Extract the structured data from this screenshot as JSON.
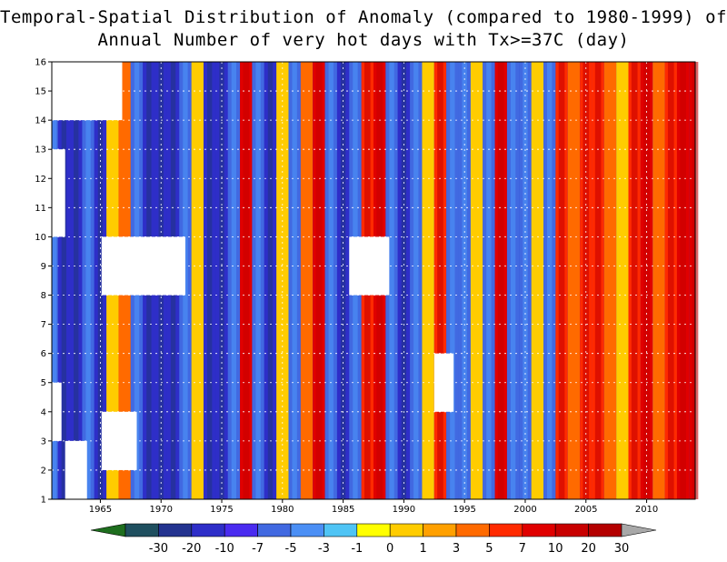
{
  "chart_data": {
    "type": "heatmap",
    "title": "Temporal-Spatial Distribution of Anomaly (compared to 1980-1999) of",
    "subtitle": "Annual Number of very hot days with Tx>=37C (day)",
    "x_ticks": [
      1965,
      1970,
      1975,
      1980,
      1985,
      1990,
      1995,
      2000,
      2005,
      2010
    ],
    "y_ticks": [
      1,
      2,
      3,
      4,
      5,
      6,
      7,
      8,
      9,
      10,
      11,
      12,
      13,
      14,
      15,
      16
    ],
    "xlim": [
      1961,
      2014
    ],
    "ylim": [
      1,
      16
    ],
    "colorbar": {
      "labels": [
        "-30",
        "-20",
        "-10",
        "-7",
        "-5",
        "-3",
        "-1",
        "0",
        "1",
        "3",
        "5",
        "7",
        "10",
        "20",
        "30"
      ],
      "colors": [
        "#1e6e1e",
        "#1f4f5f",
        "#23338f",
        "#2e2ec8",
        "#4a2bf0",
        "#4169e1",
        "#4b8ff5",
        "#4fc4f5",
        "#ffff00",
        "#ffcc00",
        "#ffa000",
        "#ff6a00",
        "#ff2a00",
        "#e00000",
        "#c80000",
        "#b40000",
        "#a8a8a8"
      ]
    },
    "columns": [
      {
        "year": 1961,
        "level": -1
      },
      {
        "year": 1962,
        "level": -2
      },
      {
        "year": 1963,
        "level": -2
      },
      {
        "year": 1964,
        "level": -1
      },
      {
        "year": 1965,
        "level": -2
      },
      {
        "year": 1966,
        "level": 0
      },
      {
        "year": 1967,
        "level": 1
      },
      {
        "year": 1968,
        "level": -1
      },
      {
        "year": 1969,
        "level": -2
      },
      {
        "year": 1970,
        "level": -2
      },
      {
        "year": 1971,
        "level": -2
      },
      {
        "year": 1972,
        "level": -1
      },
      {
        "year": 1973,
        "level": 0
      },
      {
        "year": 1974,
        "level": -2
      },
      {
        "year": 1975,
        "level": -2
      },
      {
        "year": 1976,
        "level": -1
      },
      {
        "year": 1977,
        "level": 3
      },
      {
        "year": 1978,
        "level": -1
      },
      {
        "year": 1979,
        "level": -2
      },
      {
        "year": 1980,
        "level": 0
      },
      {
        "year": 1981,
        "level": -1
      },
      {
        "year": 1982,
        "level": 1
      },
      {
        "year": 1983,
        "level": 3
      },
      {
        "year": 1984,
        "level": -1
      },
      {
        "year": 1985,
        "level": -2
      },
      {
        "year": 1986,
        "level": -1
      },
      {
        "year": 1987,
        "level": 2
      },
      {
        "year": 1988,
        "level": 3
      },
      {
        "year": 1989,
        "level": -1
      },
      {
        "year": 1990,
        "level": -2
      },
      {
        "year": 1991,
        "level": -1
      },
      {
        "year": 1992,
        "level": 0
      },
      {
        "year": 1993,
        "level": 2
      },
      {
        "year": 1994,
        "level": -1
      },
      {
        "year": 1995,
        "level": -1
      },
      {
        "year": 1996,
        "level": 0
      },
      {
        "year": 1997,
        "level": -1
      },
      {
        "year": 1998,
        "level": 3
      },
      {
        "year": 1999,
        "level": -1
      },
      {
        "year": 2000,
        "level": -1
      },
      {
        "year": 2001,
        "level": 0
      },
      {
        "year": 2002,
        "level": -1
      },
      {
        "year": 2003,
        "level": 2
      },
      {
        "year": 2004,
        "level": 1
      },
      {
        "year": 2005,
        "level": 2
      },
      {
        "year": 2006,
        "level": 2
      },
      {
        "year": 2007,
        "level": 1
      },
      {
        "year": 2008,
        "level": 0
      },
      {
        "year": 2009,
        "level": 2
      },
      {
        "year": 2010,
        "level": 3
      },
      {
        "year": 2011,
        "level": 1
      },
      {
        "year": 2012,
        "level": 2
      },
      {
        "year": 2013,
        "level": 3
      },
      {
        "year": 2014,
        "level": 3
      }
    ]
  }
}
